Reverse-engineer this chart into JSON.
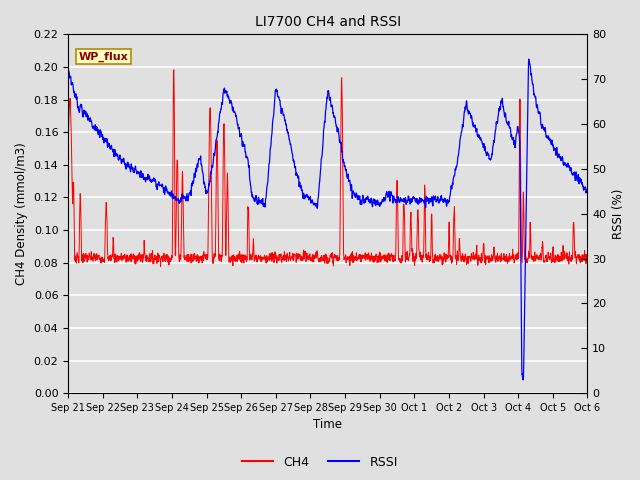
{
  "title": "LI7700 CH4 and RSSI",
  "xlabel": "Time",
  "ylabel_left": "CH4 Density (mmol/m3)",
  "ylabel_right": "RSSI (%)",
  "ylim_left": [
    0,
    0.22
  ],
  "ylim_right": [
    0,
    80
  ],
  "ch4_color": "#FF0000",
  "rssi_color": "#0000FF",
  "bg_color": "#E0E0E0",
  "legend_label_ch4": "CH4",
  "legend_label_rssi": "RSSI",
  "site_label": "WP_flux",
  "x_tick_labels": [
    "Sep 21",
    "Sep 22",
    "Sep 23",
    "Sep 24",
    "Sep 25",
    "Sep 26",
    "Sep 27",
    "Sep 28",
    "Sep 29",
    "Sep 30",
    "Oct 1",
    "Oct 2",
    "Oct 3",
    "Oct 4",
    "Oct 5",
    "Oct 6"
  ],
  "yticks_left": [
    0.0,
    0.02,
    0.04,
    0.06,
    0.08,
    0.1,
    0.12,
    0.14,
    0.16,
    0.18,
    0.2,
    0.22
  ],
  "yticks_right": [
    0,
    10,
    20,
    30,
    40,
    50,
    60,
    70,
    80
  ],
  "figsize": [
    6.4,
    4.8
  ],
  "dpi": 100
}
